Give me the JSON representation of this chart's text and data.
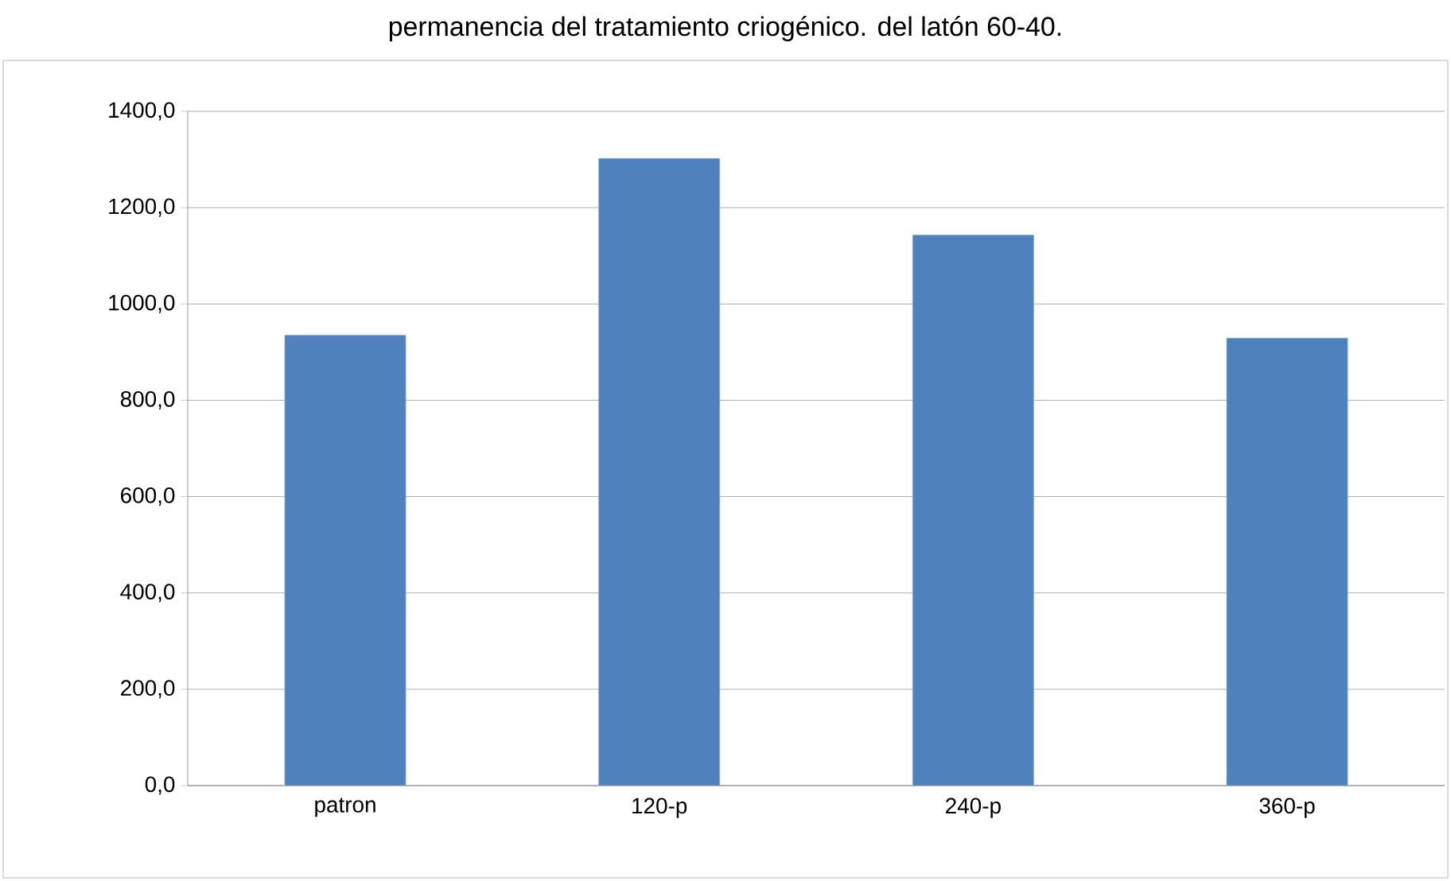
{
  "chart_data": {
    "type": "bar",
    "title": "permanencia del tratamiento criogénico. del latón 60-40.",
    "categories": [
      "patron",
      "120-p",
      "240-p",
      "360-p"
    ],
    "values": [
      935,
      1302,
      1143,
      929
    ],
    "color": "#4f81bd",
    "ylim": [
      0,
      1400
    ],
    "yticks": [
      {
        "value": 0,
        "label": "0,0"
      },
      {
        "value": 200,
        "label": "200,0"
      },
      {
        "value": 400,
        "label": "400,0"
      },
      {
        "value": 600,
        "label": "600,0"
      },
      {
        "value": 800,
        "label": "800,0"
      },
      {
        "value": 1000,
        "label": "1000,0"
      },
      {
        "value": 1200,
        "label": "1200,0"
      },
      {
        "value": 1400,
        "label": "1400,0"
      }
    ],
    "grid": "y"
  }
}
